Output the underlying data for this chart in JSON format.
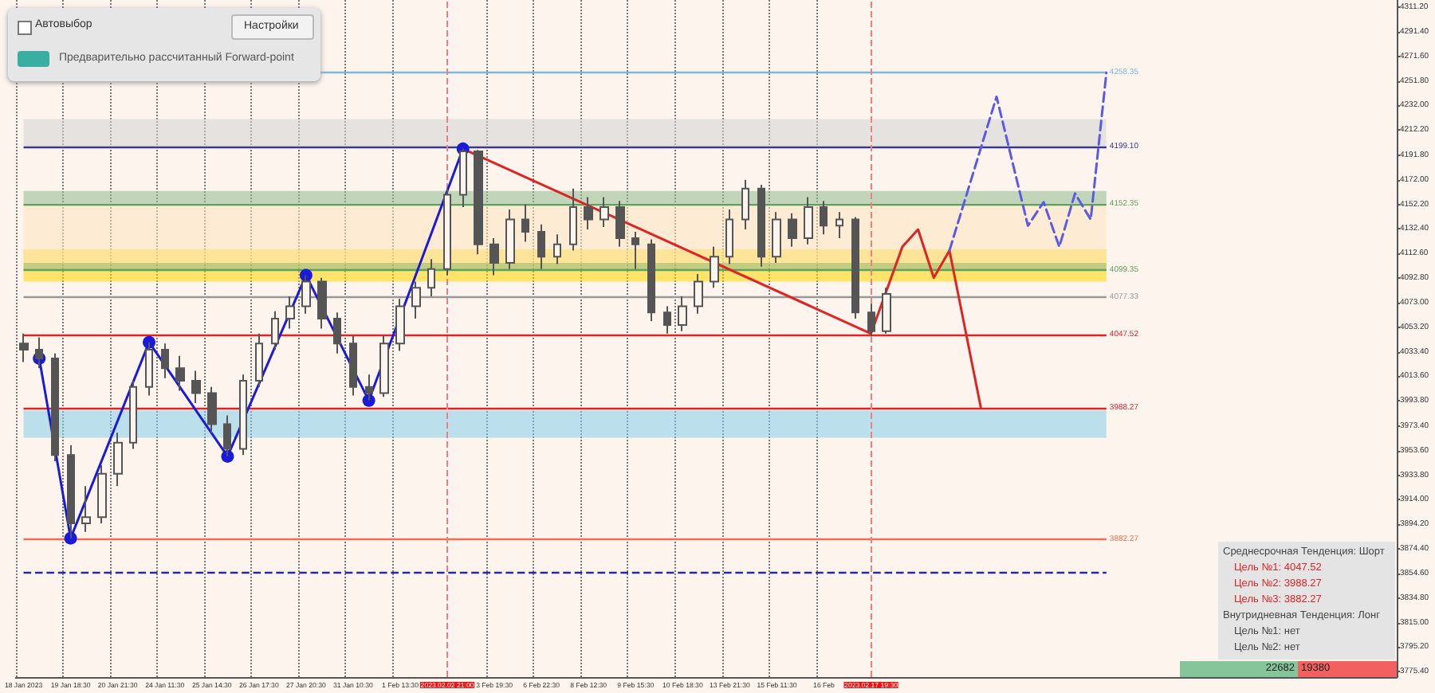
{
  "chart_data": {
    "type": "candlestick",
    "color": "#555555",
    "grid": "x",
    "categories": [
      "18 Jan 2023",
      null,
      null,
      "19 Jan 18:30",
      null,
      null,
      "20 Jan 21:30",
      null,
      null,
      "24 Jan 11:30",
      null,
      null,
      "25 Jan 14:30",
      null,
      null,
      "26 Jan 17:30",
      null,
      null,
      "27 Jan 20:30",
      null,
      null,
      "31 Jan 10:30",
      null,
      null,
      "1 Feb 13:30",
      null,
      null,
      "2023.02.02 21:00",
      null,
      null,
      "3 Feb 19:30",
      null,
      null,
      "6 Feb 22:30",
      null,
      null,
      "8 Feb 12:30",
      null,
      null,
      "9 Feb 15:30",
      null,
      null,
      "10 Feb 18:30",
      null,
      null,
      "13 Feb 21:30",
      null,
      null,
      "15 Feb 11:30",
      null,
      null,
      "16 Feb",
      null,
      null,
      "2023.02.17 19:30",
      null,
      null,
      null,
      null,
      null,
      null,
      null,
      null,
      null,
      null,
      null,
      null,
      null,
      null,
      null,
      null,
      null,
      null,
      null,
      null,
      null,
      null,
      null,
      null,
      null,
      null,
      null,
      null,
      null,
      null,
      null,
      null,
      null
    ],
    "ohlc": [
      [
        4040,
        4048,
        4025,
        4035
      ],
      [
        4035,
        4045,
        4020,
        4028
      ],
      [
        4028,
        4032,
        3945,
        3950
      ],
      [
        3950,
        3958,
        3883,
        3895
      ],
      [
        3895,
        3925,
        3888,
        3900
      ],
      [
        3900,
        3942,
        3895,
        3935
      ],
      [
        3935,
        3968,
        3925,
        3960
      ],
      [
        3960,
        4010,
        3955,
        4005
      ],
      [
        4005,
        4041,
        3998,
        4035
      ],
      [
        4035,
        4040,
        4012,
        4020
      ],
      [
        4020,
        4030,
        4002,
        4010
      ],
      [
        4010,
        4018,
        3992,
        4000
      ],
      [
        4000,
        4005,
        3968,
        3975
      ],
      [
        3975,
        3982,
        3949,
        3955
      ],
      [
        3955,
        4015,
        3950,
        4010
      ],
      [
        4010,
        4048,
        4005,
        4040
      ],
      [
        4040,
        4066,
        4035,
        4060
      ],
      [
        4060,
        4078,
        4052,
        4070
      ],
      [
        4070,
        4095,
        4064,
        4090
      ],
      [
        4090,
        4093,
        4052,
        4060
      ],
      [
        4060,
        4065,
        4032,
        4040
      ],
      [
        4040,
        4046,
        3998,
        4005
      ],
      [
        4005,
        4015,
        3994,
        4000
      ],
      [
        4000,
        4046,
        3997,
        4040
      ],
      [
        4040,
        4076,
        4034,
        4070
      ],
      [
        4070,
        4090,
        4060,
        4085
      ],
      [
        4085,
        4108,
        4078,
        4100
      ],
      [
        4100,
        4165,
        4095,
        4160
      ],
      [
        4160,
        4197,
        4150,
        4195
      ],
      [
        4195,
        4196,
        4112,
        4120
      ],
      [
        4120,
        4125,
        4095,
        4105
      ],
      [
        4105,
        4148,
        4100,
        4140
      ],
      [
        4140,
        4152,
        4122,
        4130
      ],
      [
        4130,
        4136,
        4100,
        4110
      ],
      [
        4110,
        4128,
        4104,
        4120
      ],
      [
        4120,
        4165,
        4115,
        4150
      ],
      [
        4150,
        4158,
        4132,
        4140
      ],
      [
        4140,
        4158,
        4134,
        4150
      ],
      [
        4150,
        4155,
        4118,
        4125
      ],
      [
        4125,
        4130,
        4100,
        4120
      ],
      [
        4120,
        4124,
        4058,
        4065
      ],
      [
        4065,
        4070,
        4048,
        4055
      ],
      [
        4055,
        4078,
        4050,
        4070
      ],
      [
        4070,
        4096,
        4064,
        4090
      ],
      [
        4090,
        4118,
        4085,
        4110
      ],
      [
        4110,
        4148,
        4104,
        4140
      ],
      [
        4140,
        4172,
        4132,
        4165
      ],
      [
        4165,
        4168,
        4102,
        4110
      ],
      [
        4110,
        4146,
        4105,
        4140
      ],
      [
        4140,
        4145,
        4118,
        4125
      ],
      [
        4125,
        4158,
        4120,
        4150
      ],
      [
        4150,
        4155,
        4128,
        4135
      ],
      [
        4135,
        4146,
        4125,
        4140
      ],
      [
        4140,
        4142,
        4060,
        4065
      ],
      [
        4065,
        4072,
        4046,
        4050
      ],
      [
        4050,
        4085,
        4048,
        4080
      ],
      null,
      null,
      null,
      null,
      null,
      null,
      null,
      null,
      null,
      null,
      null,
      null,
      null,
      null,
      null,
      null,
      null,
      null,
      null,
      null,
      null,
      null,
      null,
      null,
      null,
      null,
      null,
      null,
      null,
      null,
      null,
      null
    ],
    "series": [
      {
        "type": "line",
        "color": "#1a1adc",
        "marker": "circle",
        "values": [
          null,
          4028,
          null,
          3883,
          null,
          null,
          null,
          null,
          4041,
          null,
          null,
          null,
          null,
          3949,
          null,
          null,
          null,
          null,
          4095,
          null,
          null,
          null,
          3994,
          null,
          null,
          null,
          null,
          null,
          4197,
          null,
          null,
          null,
          null,
          null,
          null,
          null,
          null,
          null,
          null,
          null,
          null,
          null,
          null,
          null,
          null,
          null,
          null,
          null,
          null,
          null,
          null,
          null,
          null,
          null,
          null,
          null,
          null,
          null,
          null,
          null,
          null,
          null,
          null,
          null,
          null,
          null,
          null,
          null,
          null,
          null,
          null,
          null,
          null,
          null,
          null,
          null,
          null,
          null,
          null,
          null,
          null,
          null,
          null,
          null,
          null,
          null,
          null,
          null
        ]
      },
      {
        "type": "line",
        "color": "#e02424",
        "values": [
          null,
          null,
          null,
          null,
          null,
          null,
          null,
          null,
          null,
          null,
          null,
          null,
          null,
          null,
          null,
          null,
          null,
          null,
          null,
          null,
          null,
          null,
          null,
          null,
          null,
          null,
          null,
          null,
          4197,
          null,
          null,
          null,
          null,
          null,
          null,
          null,
          null,
          null,
          null,
          null,
          null,
          null,
          null,
          null,
          null,
          null,
          null,
          null,
          null,
          null,
          null,
          null,
          null,
          null,
          4048,
          null,
          null,
          null,
          null,
          null,
          null,
          null,
          null,
          null,
          null,
          null,
          null,
          null,
          null,
          null,
          null,
          null,
          null,
          null,
          null,
          null,
          null,
          null,
          null,
          null,
          null,
          null,
          null,
          null,
          null,
          null,
          null,
          null
        ]
      },
      {
        "type": "line",
        "color": "#e02424",
        "values": [
          null,
          null,
          null,
          null,
          null,
          null,
          null,
          null,
          null,
          null,
          null,
          null,
          null,
          null,
          null,
          null,
          null,
          null,
          null,
          null,
          null,
          null,
          null,
          null,
          null,
          null,
          null,
          null,
          null,
          null,
          null,
          null,
          null,
          null,
          null,
          null,
          null,
          null,
          null,
          null,
          null,
          null,
          null,
          null,
          null,
          null,
          null,
          null,
          null,
          null,
          null,
          null,
          null,
          null,
          4048,
          null,
          4118,
          4132,
          4093,
          4115,
          null,
          3988.27,
          null,
          null,
          null,
          null,
          null,
          null,
          null,
          null,
          null,
          null,
          null,
          null,
          null,
          null,
          null,
          null,
          null,
          null,
          null,
          null,
          null,
          null,
          null,
          null,
          null,
          null
        ]
      },
      {
        "type": "line",
        "color": "#5a5ae6",
        "line_style": "dashed",
        "values": [
          null,
          null,
          null,
          null,
          null,
          null,
          null,
          null,
          null,
          null,
          null,
          null,
          null,
          null,
          null,
          null,
          null,
          null,
          null,
          null,
          null,
          null,
          null,
          null,
          null,
          null,
          null,
          null,
          null,
          null,
          null,
          null,
          null,
          null,
          null,
          null,
          null,
          null,
          null,
          null,
          null,
          null,
          null,
          null,
          null,
          null,
          null,
          null,
          null,
          null,
          null,
          null,
          null,
          null,
          null,
          null,
          null,
          null,
          null,
          4115,
          null,
          null,
          4239,
          null,
          4135,
          4154,
          4118,
          4161,
          4140,
          4258.35,
          null,
          null,
          null,
          null,
          null,
          null,
          null,
          null,
          null,
          null,
          null,
          null,
          null,
          null,
          null,
          null,
          null,
          null
        ]
      }
    ],
    "ylim": [
      3771,
      4317
    ],
    "yticks": [
      {
        "value": 3775.4,
        "label": "3775.40"
      },
      {
        "value": 3795.2,
        "label": "3795.20"
      },
      {
        "value": 3815,
        "label": "3815.00"
      },
      {
        "value": 3834.8,
        "label": "3834.80"
      },
      {
        "value": 3854.6,
        "label": "3854.60"
      },
      {
        "value": 3874.4,
        "label": "3874.40"
      },
      {
        "value": 3894.2,
        "label": "3894.20"
      },
      {
        "value": 3914,
        "label": "3914.00"
      },
      {
        "value": 3933.8,
        "label": "3933.80"
      },
      {
        "value": 3953.6,
        "label": "3953.60"
      },
      {
        "value": 3973.4,
        "label": "3973.40"
      },
      {
        "value": 3993.8,
        "label": "3993.80"
      },
      {
        "value": 4013.6,
        "label": "4013.60"
      },
      {
        "value": 4033.4,
        "label": "4033.40"
      },
      {
        "value": 4053.2,
        "label": "4053.20"
      },
      {
        "value": 4073,
        "label": "4073.00"
      },
      {
        "value": 4092.8,
        "label": "4092.80"
      },
      {
        "value": 4112.6,
        "label": "4112.60"
      },
      {
        "value": 4132.4,
        "label": "4132.40"
      },
      {
        "value": 4152.2,
        "label": "4152.20"
      },
      {
        "value": 4172,
        "label": "4172.00"
      },
      {
        "value": 4191.8,
        "label": "4191.80"
      },
      {
        "value": 4212.2,
        "label": "4212.20"
      },
      {
        "value": 4232,
        "label": "4232.00"
      },
      {
        "value": 4251.8,
        "label": "4251.80"
      },
      {
        "value": 4271.6,
        "label": "4271.60"
      },
      {
        "value": 4291.4,
        "label": "4291.40"
      },
      {
        "value": 4311.2,
        "label": "4311.20"
      }
    ],
    "ref_lines": [
      {
        "axis": "y",
        "value": 4258.35,
        "label": "4258.35",
        "color": "#7fb8d8"
      },
      {
        "axis": "y",
        "value": 4199.1,
        "label": "4199.10",
        "color": "#3a3a8c"
      },
      {
        "axis": "y",
        "value": 4152.35,
        "label": "4152.35",
        "color": "#5f9f5f"
      },
      {
        "axis": "y",
        "value": 4099.35,
        "label": "4099.35",
        "color": "#5f9f5f"
      },
      {
        "axis": "y",
        "value": 4077.33,
        "label": "4077.33",
        "color": "#999999"
      },
      {
        "axis": "y",
        "value": 4047.52,
        "label": "4047.52",
        "color": "#e02424"
      },
      {
        "axis": "y",
        "value": 3988.27,
        "label": "3988.27",
        "color": "#e02424"
      },
      {
        "axis": "y",
        "value": 3882.27,
        "label": "3882.27",
        "color": "#f07050"
      },
      {
        "axis": "y",
        "value": 3855,
        "color": "#2a2aa0",
        "line_style": "dashed"
      },
      {
        "axis": "x",
        "value": "2023.02.02 21:00",
        "color": "#f08080",
        "line_style": "dashed"
      },
      {
        "axis": "x",
        "value": "2023.02.17 19:30",
        "color": "#f08080",
        "line_style": "dashed"
      }
    ],
    "bands": [
      {
        "axis": "y",
        "from": 4199,
        "to": 4221,
        "color": "#d3d3d3"
      },
      {
        "axis": "y",
        "from": 4090,
        "to": 4116,
        "color": "#ffd700"
      },
      {
        "axis": "y",
        "from": 4105,
        "to": 4153,
        "color": "#fde3bd"
      },
      {
        "axis": "y",
        "from": 4153,
        "to": 4163,
        "color": "#8fbc8f"
      },
      {
        "axis": "y",
        "from": 4099,
        "to": 4105,
        "color": "#8fbc8f"
      },
      {
        "axis": "y",
        "from": 3964,
        "to": 3986,
        "color": "#87ceeb"
      }
    ],
    "annotations": [
      "Автовыбор",
      "Настройки",
      "Предварительно рассчитанный Forward-point",
      "Среднесрочная Тенденция: Шорт",
      "Цель №1: 4047.52",
      "Цель №2: 3988.27",
      "Цель №3: 3882.27",
      "Внутридневная Тенденция: Лонг",
      "Цель №1: нет",
      "Цель №2: нет",
      "22682",
      "19380"
    ]
  }
}
